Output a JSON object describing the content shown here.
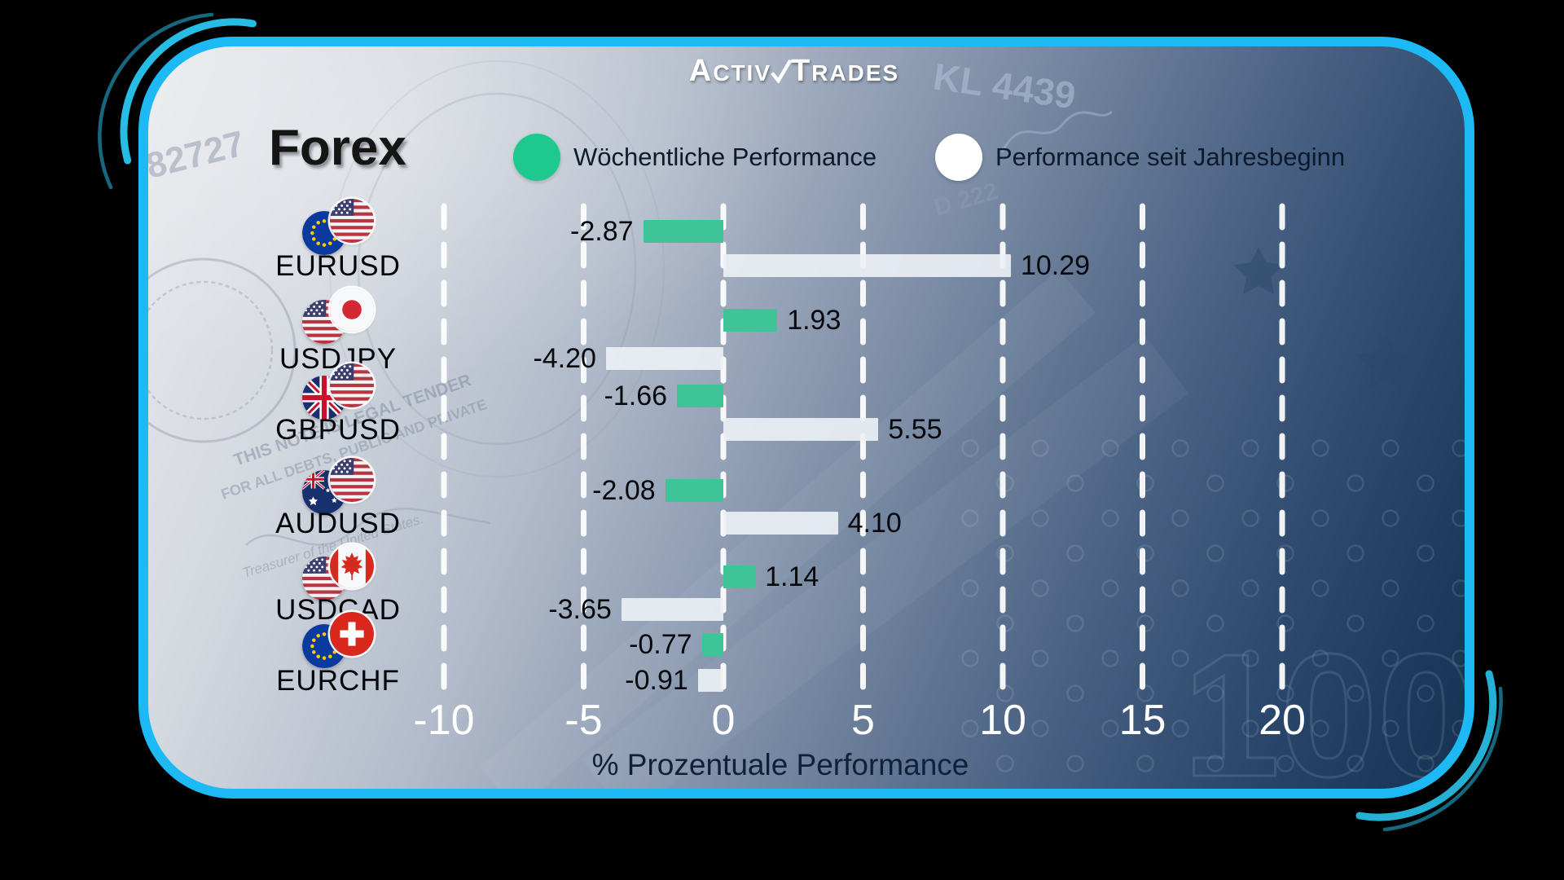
{
  "brand": {
    "name": "ActivTrades",
    "l1": "A",
    "l2": "CTIV",
    "l3": "T",
    "l4": "RADES"
  },
  "title": "Forex",
  "legend": [
    {
      "label": "Wöchentliche Performance",
      "color": "#1EC98F"
    },
    {
      "label": "Performance seit Jahresbeginn",
      "color": "#FFFFFF"
    }
  ],
  "chart_data": {
    "type": "bar",
    "orientation": "horizontal",
    "title": "Forex",
    "xlabel": "% Prozentuale Performance",
    "x_ticks": [
      -10,
      -5,
      0,
      5,
      10,
      15,
      20
    ],
    "xlim": [
      -12.5,
      22.5
    ],
    "grid": "dashed-vertical-white",
    "legend_position": "top",
    "categories": [
      "EURUSD",
      "USDJPY",
      "GBPUSD",
      "AUDUSD",
      "USDCAD",
      "EURCHF"
    ],
    "flags": [
      [
        "eu",
        "us"
      ],
      [
        "us",
        "jp"
      ],
      [
        "gb",
        "us"
      ],
      [
        "au",
        "us"
      ],
      [
        "us",
        "ca"
      ],
      [
        "eu",
        "ch"
      ]
    ],
    "series": [
      {
        "name": "Wöchentliche Performance",
        "color": "#3EC497",
        "values": [
          -2.87,
          1.93,
          -1.66,
          -2.08,
          1.14,
          -0.77
        ]
      },
      {
        "name": "Performance seit Jahresbeginn",
        "color": "rgba(235,240,245,0.92)",
        "values": [
          10.29,
          -4.2,
          5.55,
          4.1,
          -3.65,
          -0.91
        ]
      }
    ],
    "value_labels": [
      [
        "-2.87",
        "10.29"
      ],
      [
        "1.93",
        "-4.20"
      ],
      [
        "-1.66",
        "5.55"
      ],
      [
        "-2.08",
        "4.10"
      ],
      [
        "1.14",
        "-3.65"
      ],
      [
        "-0.77",
        "-0.91"
      ]
    ]
  }
}
